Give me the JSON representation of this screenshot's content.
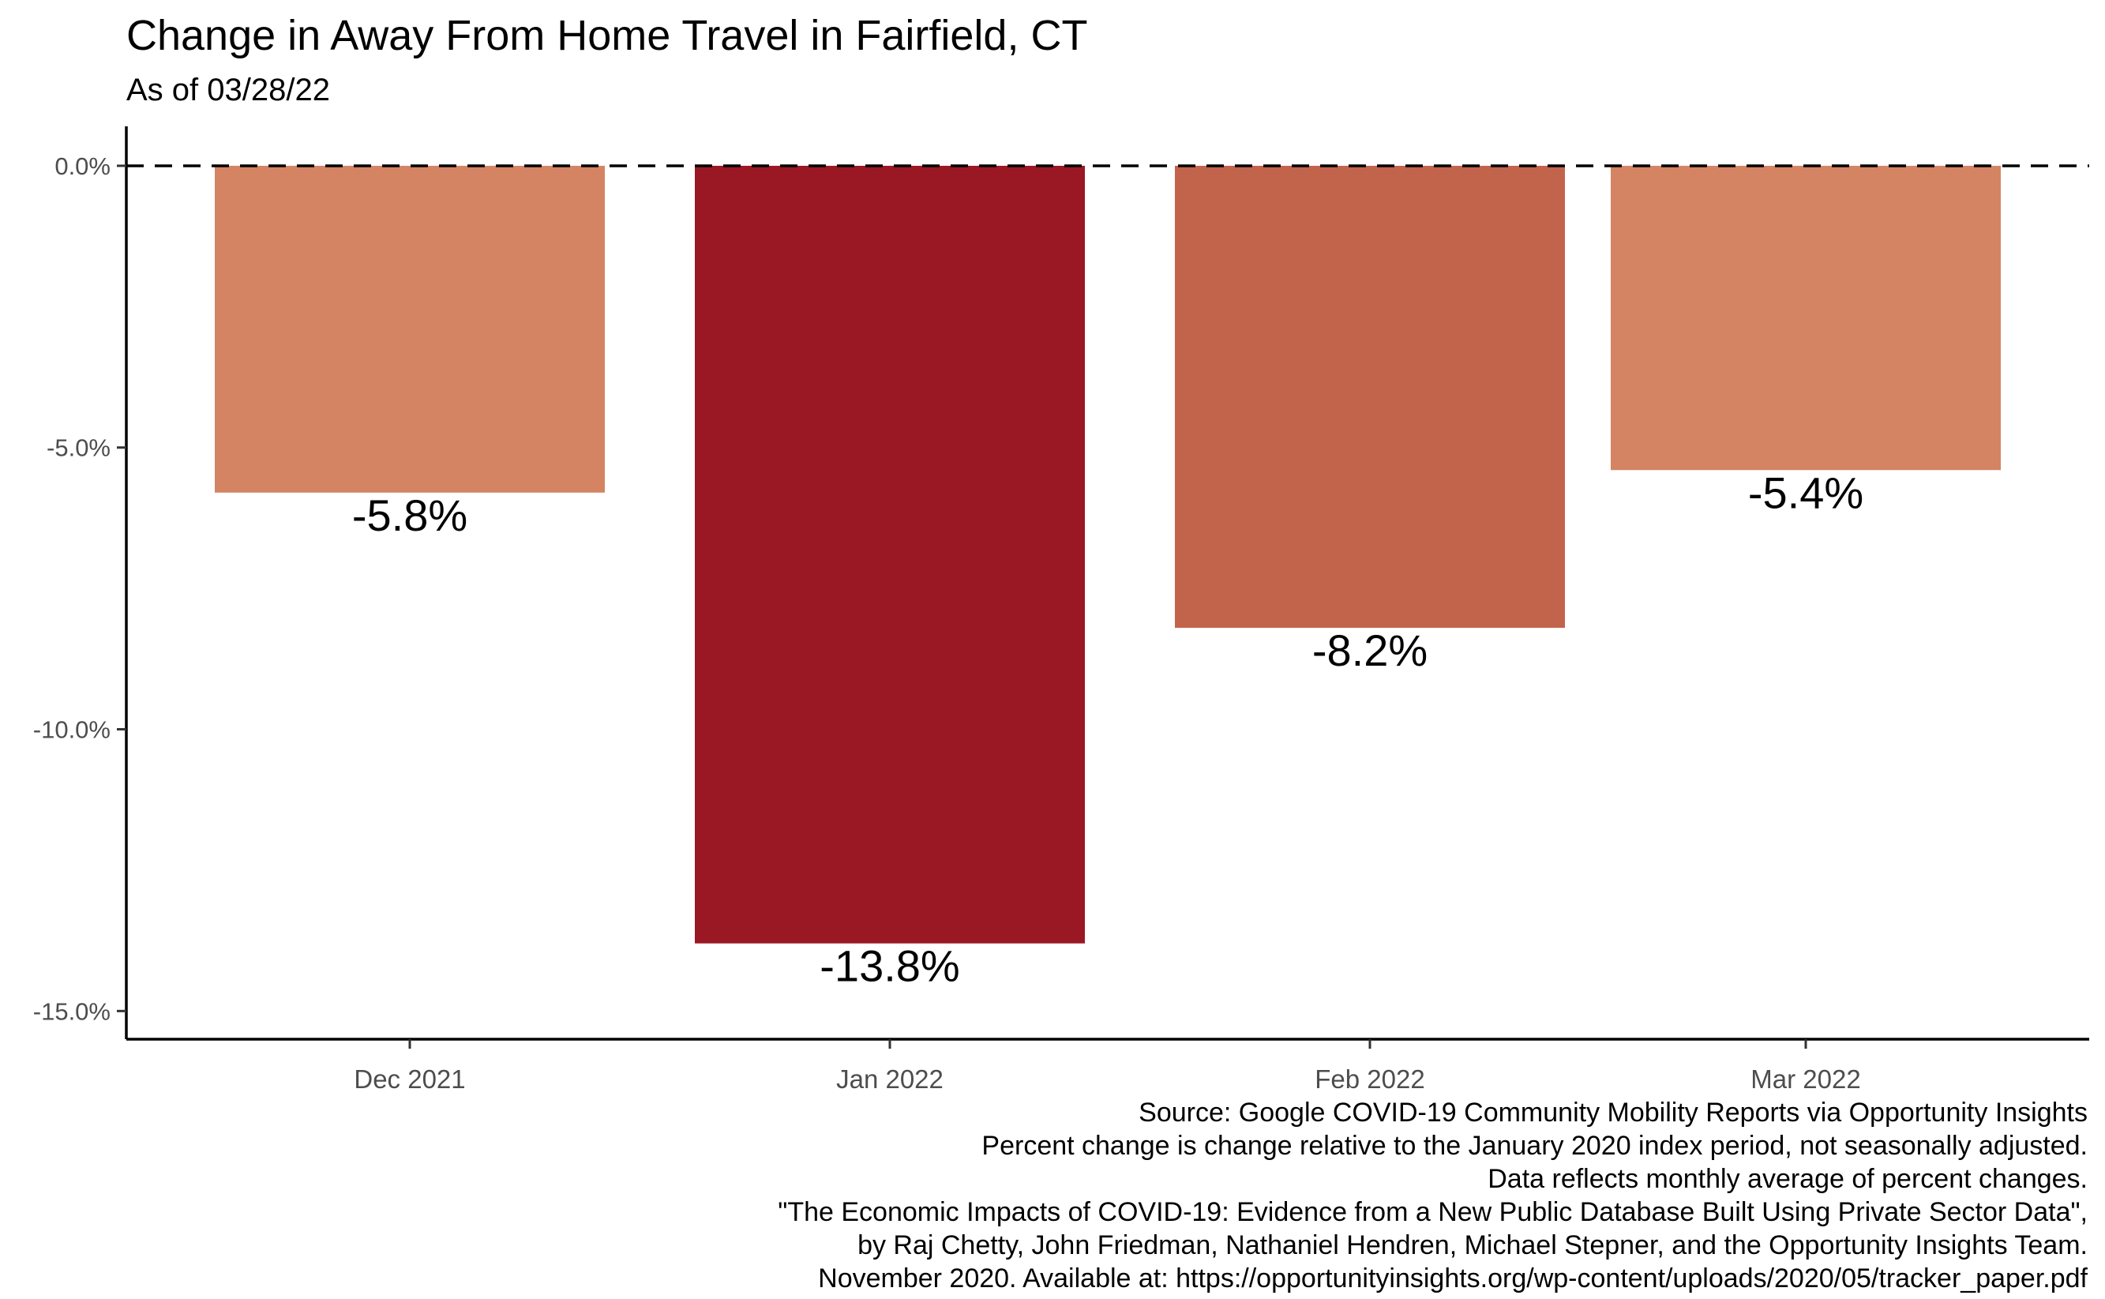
{
  "chart_data": {
    "type": "bar",
    "title": "Change in Away From Home Travel in Fairfield, CT",
    "subtitle": "As of 03/28/22",
    "categories": [
      "Dec 2021",
      "Jan 2022",
      "Feb 2022",
      "Mar 2022"
    ],
    "values": [
      -5.8,
      -13.8,
      -8.2,
      -5.4
    ],
    "data_labels": [
      "-5.8%",
      "-13.8%",
      "-8.2%",
      "-5.4%"
    ],
    "bar_colors": [
      "#D48462",
      "#9A1824",
      "#C2644B",
      "#D48462"
    ],
    "xlabel": "",
    "ylabel": "",
    "ylim": [
      -15.5,
      0.7
    ],
    "y_ticks": [
      0,
      -5,
      -10,
      -15
    ],
    "y_tick_labels": [
      "0.0%",
      "-5.0%",
      "-10.0%",
      "-15.0%"
    ],
    "reference_line": {
      "value": 0,
      "style": "dashed"
    },
    "grid": false,
    "legend": "none",
    "caption": [
      "Source: Google COVID-19 Community Mobility Reports via Opportunity Insights",
      "Percent change is change relative to the January 2020 index period, not seasonally adjusted.",
      "Data reflects monthly average of percent changes.",
      "\"The Economic Impacts of COVID-19: Evidence from a New Public Database Built Using Private Sector Data\",",
      "by Raj Chetty, John Friedman, Nathaniel Hendren, Michael Stepner, and the Opportunity Insights Team.",
      "November 2020. Available at: https://opportunityinsights.org/wp-content/uploads/2020/05/tracker_paper.pdf"
    ]
  }
}
